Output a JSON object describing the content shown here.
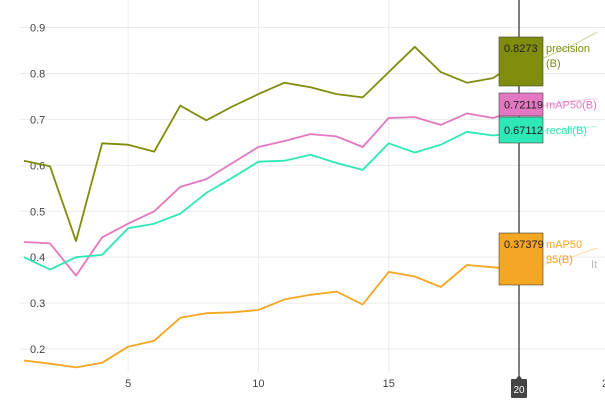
{
  "chart_data": {
    "type": "line",
    "x": [
      1,
      2,
      3,
      4,
      5,
      6,
      7,
      8,
      9,
      10,
      11,
      12,
      13,
      14,
      15,
      16,
      17,
      18,
      19,
      20,
      21,
      22,
      23
    ],
    "xlim": [
      0.85,
      23.3
    ],
    "ylim": [
      0.15,
      0.96
    ],
    "x_ticks": [
      5,
      10,
      15
    ],
    "y_ticks": [
      0.2,
      0.3,
      0.4,
      0.5,
      0.6,
      0.7,
      0.8,
      0.9
    ],
    "grid": true,
    "legend": "none",
    "series": [
      {
        "name": "precision(B)",
        "color": "#7f8c0c",
        "values": [
          0.61,
          0.598,
          0.435,
          0.648,
          0.645,
          0.63,
          0.73,
          0.698,
          0.728,
          0.755,
          0.78,
          0.77,
          0.755,
          0.748,
          0.803,
          0.858,
          0.803,
          0.78,
          0.79,
          0.8273,
          0.835,
          0.86,
          0.89
        ]
      },
      {
        "name": "mAP50(B)",
        "color": "#e377c2",
        "values": [
          0.433,
          0.43,
          0.36,
          0.443,
          0.473,
          0.5,
          0.553,
          0.57,
          0.605,
          0.64,
          0.653,
          0.668,
          0.663,
          0.64,
          0.703,
          0.705,
          0.688,
          0.713,
          0.703,
          0.72119,
          0.73,
          0.74,
          0.745
        ]
      },
      {
        "name": "recall(B)",
        "color": "#2ee8b6",
        "values": [
          0.4,
          0.373,
          0.4,
          0.405,
          0.463,
          0.473,
          0.495,
          0.54,
          0.573,
          0.608,
          0.61,
          0.623,
          0.605,
          0.59,
          0.648,
          0.628,
          0.645,
          0.673,
          0.665,
          0.67112,
          0.675,
          0.68,
          0.685
        ]
      },
      {
        "name": "mAP50-95(B)",
        "color": "#f5a623",
        "values": [
          0.175,
          0.168,
          0.16,
          0.17,
          0.205,
          0.218,
          0.268,
          0.278,
          0.28,
          0.285,
          0.308,
          0.318,
          0.325,
          0.297,
          0.368,
          0.358,
          0.335,
          0.383,
          0.378,
          0.37379,
          0.385,
          0.4,
          0.42
        ]
      }
    ],
    "hover": {
      "x": 20,
      "x_label": "20",
      "tooltips": [
        {
          "series": "precision(B)",
          "value": "0.8273",
          "name_line1": "precision",
          "name_line2": "(B)",
          "bg": "#7f8c0c"
        },
        {
          "series": "mAP50(B)",
          "value": "0.72119",
          "name_line1": "mAP50(B)",
          "name_line2": "",
          "bg": "#e377c2"
        },
        {
          "series": "recall(B)",
          "value": "0.67112",
          "name_line1": "recall(B)",
          "name_line2": "",
          "bg": "#2ee8b6"
        },
        {
          "series": "mAP50-95(B)",
          "value": "0.37379",
          "name_line1": "mAP50",
          "name_line2": "95(B)",
          "bg": "#f5a623"
        }
      ]
    },
    "hidden_tooltip_fragment": "It",
    "clipped_tick": "2"
  }
}
